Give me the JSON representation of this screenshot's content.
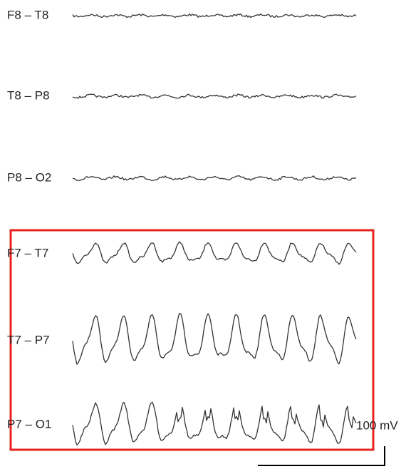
{
  "channels": [
    {
      "label": "F8 – T8"
    },
    {
      "label": "T8 – P8"
    },
    {
      "label": "P8 – O2"
    },
    {
      "label": "F7 – T7"
    },
    {
      "label": "T7 – P7"
    },
    {
      "label": "P7 – O1"
    }
  ],
  "scale_label": "100 mV"
}
